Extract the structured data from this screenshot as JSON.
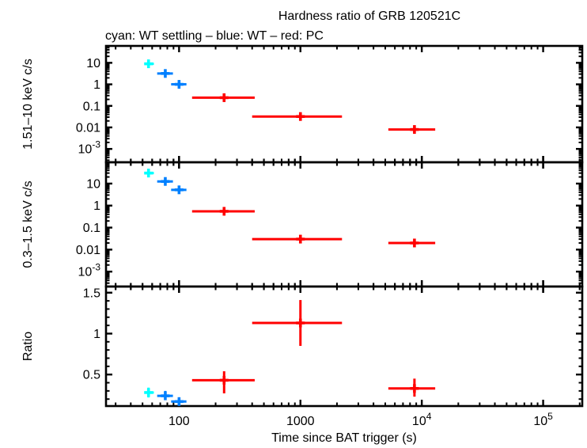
{
  "title": "Hardness ratio of GRB 120521C",
  "subtitle": "cyan: WT settling – blue: WT – red: PC",
  "xlabel": "Time since BAT trigger (s)",
  "legend": {
    "cyan_label": "WT settling",
    "blue_label": "WT",
    "red_label": "PC"
  },
  "colors": {
    "cyan": "#00ffff",
    "blue": "#0080ff",
    "red": "#ff0000",
    "frame": "#000000",
    "background": "#ffffff"
  },
  "chart_data": {
    "type": "scatter",
    "xscale": "log",
    "xlim": [
      25,
      210000
    ],
    "x_ticks": [
      "100",
      "1000",
      "10^4",
      "10^5"
    ],
    "grid": false,
    "panels": [
      {
        "ylabel": "1.51–10 keV c/s",
        "yscale": "log",
        "ylim": [
          0.00024,
          61
        ],
        "y_ticks": [
          "10",
          "1",
          "0.1",
          "0.01",
          "10^-3"
        ],
        "series": [
          {
            "name": "WT settling",
            "color_key": "cyan",
            "points": [
              {
                "t": 56,
                "t_range": [
                  52,
                  62
                ],
                "y": 9.0,
                "y_range": [
                  7.0,
                  11.5
                ]
              }
            ]
          },
          {
            "name": "WT",
            "color_key": "blue",
            "points": [
              {
                "t": 77,
                "t_range": [
                  66,
                  89
                ],
                "y": 3.2,
                "y_range": [
                  2.5,
                  4.0
                ]
              },
              {
                "t": 100,
                "t_range": [
                  86,
                  115
                ],
                "y": 1.0,
                "y_range": [
                  0.78,
                  1.25
                ]
              }
            ]
          },
          {
            "name": "PC",
            "color_key": "red",
            "points": [
              {
                "t": 235,
                "t_range": [
                  128,
                  420
                ],
                "y": 0.24,
                "y_range": [
                  0.18,
                  0.31
                ]
              },
              {
                "t": 1000,
                "t_range": [
                  400,
                  2200
                ],
                "y": 0.032,
                "y_range": [
                  0.023,
                  0.044
                ]
              },
              {
                "t": 8700,
                "t_range": [
                  5300,
                  12900
                ],
                "y": 0.008,
                "y_range": [
                  0.006,
                  0.0105
                ]
              }
            ]
          }
        ]
      },
      {
        "ylabel": "0.3–1.5 keV c/s",
        "yscale": "log",
        "ylim": [
          0.00021,
          93
        ],
        "y_ticks": [
          "10",
          "1",
          "0.1",
          "0.01",
          "10^-3"
        ],
        "series": [
          {
            "name": "WT settling",
            "color_key": "cyan",
            "points": [
              {
                "t": 56,
                "t_range": [
                  52,
                  62
                ],
                "y": 30,
                "y_range": [
                  25,
                  37
                ]
              }
            ]
          },
          {
            "name": "WT",
            "color_key": "blue",
            "points": [
              {
                "t": 77,
                "t_range": [
                  66,
                  89
                ],
                "y": 12.5,
                "y_range": [
                  10.5,
                  15
                ]
              },
              {
                "t": 100,
                "t_range": [
                  86,
                  115
                ],
                "y": 5.2,
                "y_range": [
                  4.3,
                  6.3
                ]
              }
            ]
          },
          {
            "name": "PC",
            "color_key": "red",
            "points": [
              {
                "t": 235,
                "t_range": [
                  128,
                  420
                ],
                "y": 0.55,
                "y_range": [
                  0.45,
                  0.68
                ]
              },
              {
                "t": 1000,
                "t_range": [
                  400,
                  2200
                ],
                "y": 0.03,
                "y_range": [
                  0.022,
                  0.04
                ]
              },
              {
                "t": 8700,
                "t_range": [
                  5300,
                  12900
                ],
                "y": 0.02,
                "y_range": [
                  0.015,
                  0.026
                ]
              }
            ]
          }
        ]
      },
      {
        "ylabel": "Ratio",
        "yscale": "linear",
        "ylim": [
          0.115,
          1.575
        ],
        "y_ticks": [
          "0.5",
          "1",
          "1.5"
        ],
        "series": [
          {
            "name": "WT settling",
            "color_key": "cyan",
            "points": [
              {
                "t": 56,
                "t_range": [
                  52,
                  62
                ],
                "y": 0.28,
                "y_range": [
                  0.22,
                  0.34
                ]
              }
            ]
          },
          {
            "name": "WT",
            "color_key": "blue",
            "points": [
              {
                "t": 77,
                "t_range": [
                  66,
                  89
                ],
                "y": 0.24,
                "y_range": [
                  0.19,
                  0.3
                ]
              },
              {
                "t": 100,
                "t_range": [
                  86,
                  115
                ],
                "y": 0.17,
                "y_range": [
                  0.13,
                  0.21
                ]
              }
            ]
          },
          {
            "name": "PC",
            "color_key": "red",
            "points": [
              {
                "t": 235,
                "t_range": [
                  128,
                  420
                ],
                "y": 0.43,
                "y_range": [
                  0.27,
                  0.54
                ]
              },
              {
                "t": 1000,
                "t_range": [
                  400,
                  2200
                ],
                "y": 1.13,
                "y_range": [
                  0.85,
                  1.41
                ]
              },
              {
                "t": 8700,
                "t_range": [
                  5300,
                  12900
                ],
                "y": 0.33,
                "y_range": [
                  0.23,
                  0.45
                ]
              }
            ]
          }
        ]
      }
    ]
  }
}
